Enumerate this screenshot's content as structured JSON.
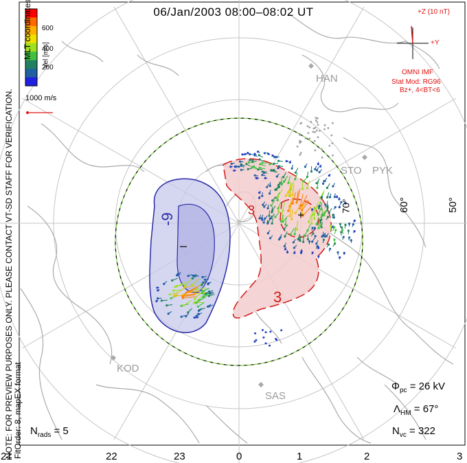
{
  "header": {
    "title": "06/Jan/2003 08:00–08:02 UT"
  },
  "side_note": {
    "line1": "NOTE: FOR PREVIEW PURPOSES ONLY. PLEASE CONTACT VT-SD STAFF FOR VERIFICATION.",
    "line2": "FitOrder: 8, mapEX format"
  },
  "colorbar": {
    "label": "Vel [m/s]",
    "ticks": [
      "600",
      "400",
      "200"
    ],
    "colors": [
      "#ff0000",
      "#ff6a00",
      "#ffb000",
      "#f0e000",
      "#a0e020",
      "#40c040",
      "#208060",
      "#2060a0",
      "#2020e0"
    ]
  },
  "coordinates_label": "MLT coordinates",
  "scale_label": "1000 m/s",
  "imf": {
    "top": "+Z (10 nT)",
    "right": "+Y",
    "source": "OMNI IMF",
    "model": "Stat Mod: RG96",
    "condition": "Bz+, 4<BT<6"
  },
  "stations": [
    "HAN",
    "STO",
    "PYK",
    "KOD",
    "SAS"
  ],
  "latitude_labels": [
    "60°",
    "50°",
    "70°"
  ],
  "contour_labels": {
    "neg": "-9",
    "neg_sign": "–",
    "pos": "3",
    "pos_top": "3",
    "pos_sign": "+"
  },
  "stats": {
    "phi_pc": "Φpc = 26 kV",
    "lambda_hm": "ΛHM = 67°",
    "n_vc": "Nvc = 322",
    "n_rads": "Nrads = 5"
  },
  "mlt_axis": [
    "21",
    "22",
    "23",
    "0",
    "1",
    "2",
    "3"
  ]
}
